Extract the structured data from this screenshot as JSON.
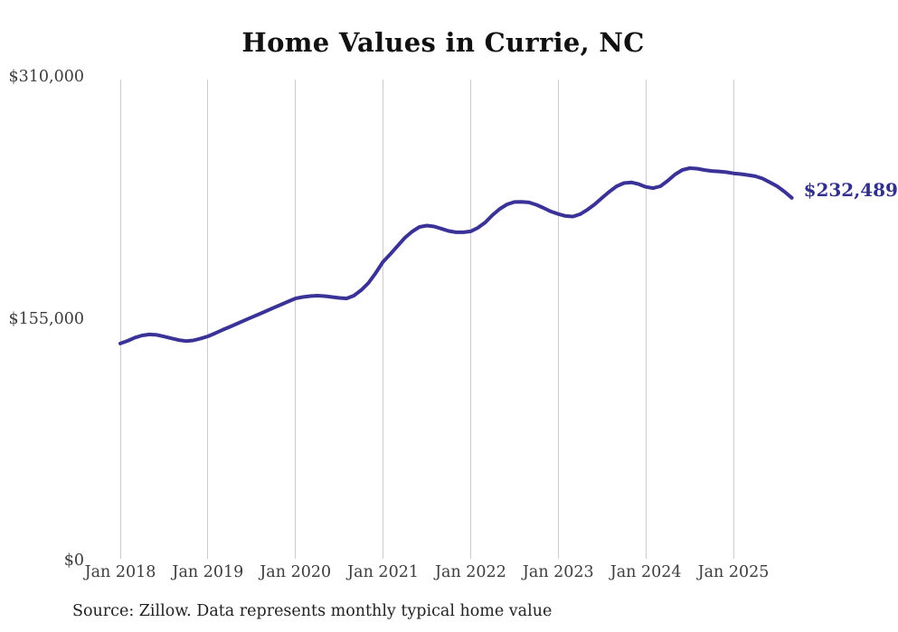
{
  "chart": {
    "title": "Home Values in Currie, NC",
    "end_label": "$232,489",
    "source": "Source: Zillow. Data represents monthly typical home value"
  },
  "chart_data": {
    "type": "line",
    "title": "Home Values in Currie, NC",
    "series_name": "Monthly typical home value",
    "xlabel": "",
    "ylabel": "",
    "ylim": [
      0,
      310000
    ],
    "grid": "vertical-only",
    "legend": "none",
    "y_ticks": [
      {
        "value": 0,
        "label": "$0"
      },
      {
        "value": 155000,
        "label": "$155,000"
      },
      {
        "value": 310000,
        "label": "$310,000"
      }
    ],
    "x_gridlines": [
      {
        "label": "Jan 2018",
        "month_index": 0
      },
      {
        "label": "Jan 2019",
        "month_index": 12
      },
      {
        "label": "Jan 2020",
        "month_index": 24
      },
      {
        "label": "Jan 2021",
        "month_index": 36
      },
      {
        "label": "Jan 2022",
        "month_index": 48
      },
      {
        "label": "Jan 2023",
        "month_index": 60
      },
      {
        "label": "Jan 2024",
        "month_index": 72
      },
      {
        "label": "Jan 2025",
        "month_index": 84
      }
    ],
    "x_months": [
      "2018-01",
      "2018-02",
      "2018-03",
      "2018-04",
      "2018-05",
      "2018-06",
      "2018-07",
      "2018-08",
      "2018-09",
      "2018-10",
      "2018-11",
      "2018-12",
      "2019-01",
      "2019-02",
      "2019-03",
      "2019-04",
      "2019-05",
      "2019-06",
      "2019-07",
      "2019-08",
      "2019-09",
      "2019-10",
      "2019-11",
      "2019-12",
      "2020-01",
      "2020-02",
      "2020-03",
      "2020-04",
      "2020-05",
      "2020-06",
      "2020-07",
      "2020-08",
      "2020-09",
      "2020-10",
      "2020-11",
      "2020-12",
      "2021-01",
      "2021-02",
      "2021-03",
      "2021-04",
      "2021-05",
      "2021-06",
      "2021-07",
      "2021-08",
      "2021-09",
      "2021-10",
      "2021-11",
      "2021-12",
      "2022-01",
      "2022-02",
      "2022-03",
      "2022-04",
      "2022-05",
      "2022-06",
      "2022-07",
      "2022-08",
      "2022-09",
      "2022-10",
      "2022-11",
      "2022-12",
      "2023-01",
      "2023-02",
      "2023-03",
      "2023-04",
      "2023-05",
      "2023-06",
      "2023-07",
      "2023-08",
      "2023-09",
      "2023-10",
      "2023-11",
      "2023-12",
      "2024-01",
      "2024-02",
      "2024-03",
      "2024-04",
      "2024-05",
      "2024-06",
      "2024-07",
      "2024-08",
      "2024-09",
      "2024-10",
      "2024-11",
      "2024-12",
      "2025-01",
      "2025-02",
      "2025-03",
      "2025-04",
      "2025-05",
      "2025-06",
      "2025-07",
      "2025-08",
      "2025-09"
    ],
    "values": [
      139100,
      140800,
      142900,
      144300,
      144900,
      144600,
      143600,
      142400,
      141300,
      140700,
      141100,
      142300,
      143700,
      145700,
      147800,
      149800,
      151800,
      153900,
      155900,
      157900,
      159900,
      162000,
      164000,
      166000,
      168000,
      168900,
      169500,
      169800,
      169500,
      168900,
      168300,
      168000,
      169800,
      173300,
      177900,
      184300,
      191500,
      196400,
      201700,
      206900,
      210900,
      213800,
      214700,
      214100,
      212700,
      211200,
      210400,
      210400,
      211000,
      213300,
      216700,
      221400,
      225400,
      228300,
      229800,
      229900,
      229500,
      228000,
      226000,
      223700,
      222100,
      220800,
      220500,
      222000,
      224900,
      228300,
      232400,
      236400,
      239900,
      241900,
      242400,
      241300,
      239500,
      238700,
      239900,
      243400,
      247400,
      250300,
      251500,
      251200,
      250300,
      249700,
      249400,
      248900,
      248200,
      247700,
      247100,
      246300,
      244800,
      242400,
      239900,
      236400,
      232489
    ],
    "end_value": 232489,
    "end_value_label": "$232,489",
    "colors": {
      "line": "#3a3296",
      "end_label": "#32308a",
      "grid": "#cccccc",
      "axis_text": "#3d3d3d",
      "title": "#111111",
      "source_text": "#222222",
      "background": "#ffffff"
    }
  }
}
